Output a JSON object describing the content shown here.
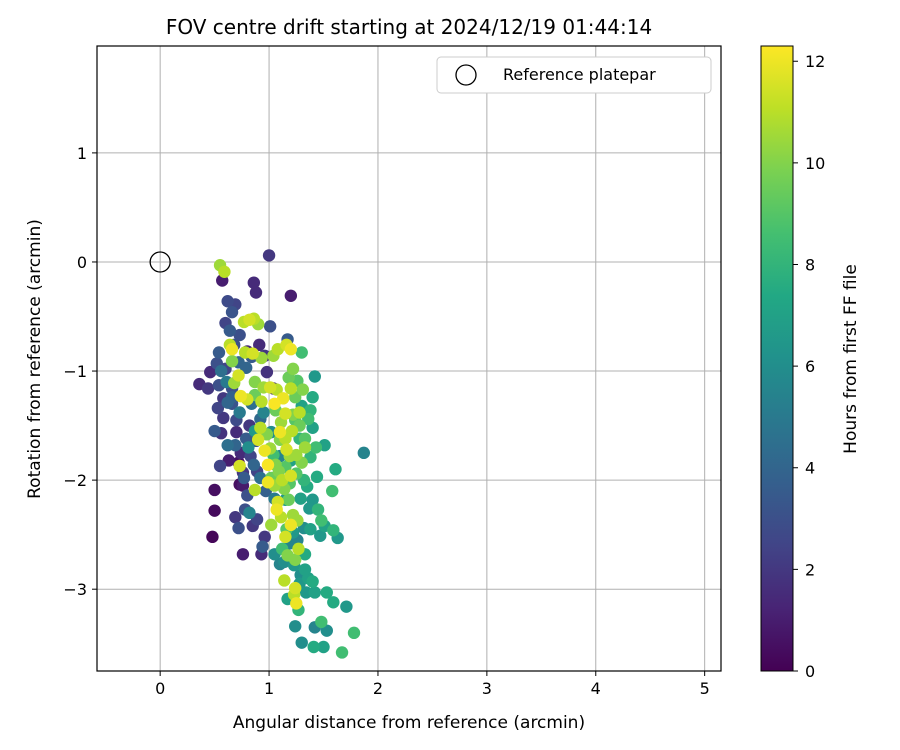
{
  "chart_data": {
    "type": "scatter",
    "title": "FOV centre drift starting at 2024/12/19 01:44:14",
    "xlabel": "Angular distance from reference (arcmin)",
    "ylabel": "Rotation from reference (arcmin)",
    "xlim": [
      -0.58,
      5.15
    ],
    "ylim": [
      -3.75,
      1.98
    ],
    "xticks": [
      0,
      1,
      2,
      3,
      4,
      5
    ],
    "xtick_labels": [
      "0",
      "1",
      "2",
      "3",
      "4",
      "5"
    ],
    "yticks": [
      1,
      0,
      -1,
      -2,
      -3
    ],
    "ytick_labels": [
      "1",
      "0",
      "−1",
      "−2",
      "−3"
    ],
    "grid": true,
    "legend": {
      "placement": "top-right",
      "entries": [
        {
          "label": "Reference platepar",
          "marker": "open-circle"
        }
      ]
    },
    "reference_point": {
      "x": 0,
      "y": 0,
      "label": "Reference platepar"
    },
    "colorbar": {
      "label": "Hours from first FF file",
      "colormap": "viridis",
      "range": [
        0,
        12.3
      ],
      "ticks": [
        0,
        2,
        4,
        6,
        8,
        10,
        12
      ],
      "tick_labels": [
        "0",
        "2",
        "4",
        "6",
        "8",
        "10",
        "12"
      ]
    },
    "points": [
      [
        0.48,
        -2.52,
        0.2
      ],
      [
        0.5,
        -2.28,
        0.3
      ],
      [
        0.5,
        -2.09,
        0.5
      ],
      [
        0.55,
        -1.87,
        2.5
      ],
      [
        0.63,
        -1.82,
        1.0
      ],
      [
        0.72,
        -1.84,
        0.6
      ],
      [
        0.73,
        -2.04,
        0.5
      ],
      [
        0.76,
        -2.05,
        0.9
      ],
      [
        0.69,
        -2.34,
        2.0
      ],
      [
        0.72,
        -2.44,
        3.0
      ],
      [
        0.76,
        -2.68,
        1.0
      ],
      [
        0.85,
        -2.42,
        2.0
      ],
      [
        0.78,
        -2.27,
        3.0
      ],
      [
        0.89,
        -2.36,
        2.5
      ],
      [
        0.93,
        -2.68,
        1.5
      ],
      [
        0.96,
        -2.52,
        2.0
      ],
      [
        0.94,
        -2.61,
        3.5
      ],
      [
        0.36,
        -1.12,
        1.5
      ],
      [
        0.44,
        -1.16,
        2.0
      ],
      [
        0.46,
        -1.01,
        1.5
      ],
      [
        0.52,
        -0.93,
        3.0
      ],
      [
        0.54,
        -0.83,
        3.5
      ],
      [
        0.53,
        -1.34,
        2.5
      ],
      [
        0.5,
        -1.55,
        3.5
      ],
      [
        0.56,
        -1.57,
        1.8
      ],
      [
        0.58,
        -1.43,
        2.0
      ],
      [
        0.62,
        -1.29,
        4.0
      ],
      [
        0.66,
        -1.16,
        3.0
      ],
      [
        0.7,
        -1.56,
        1.5
      ],
      [
        0.74,
        -1.75,
        1.5
      ],
      [
        0.76,
        -1.93,
        2.0
      ],
      [
        0.8,
        -2.14,
        3.0
      ],
      [
        0.77,
        -1.98,
        3.5
      ],
      [
        0.83,
        -1.78,
        2.5
      ],
      [
        0.88,
        -1.64,
        3.0
      ],
      [
        0.82,
        -1.5,
        2.0
      ],
      [
        0.6,
        -0.56,
        2.5
      ],
      [
        0.57,
        -0.17,
        1.0
      ],
      [
        0.62,
        -0.36,
        2.8
      ],
      [
        0.66,
        -0.46,
        3.2
      ],
      [
        0.69,
        -0.39,
        2.5
      ],
      [
        0.86,
        -0.19,
        1.5
      ],
      [
        0.88,
        -0.28,
        1.5
      ],
      [
        1.0,
        0.06,
        2.0
      ],
      [
        1.01,
        -0.59,
        3.0
      ],
      [
        1.2,
        -0.31,
        1.0
      ],
      [
        1.17,
        -0.71,
        3.5
      ],
      [
        0.91,
        -0.76,
        1.5
      ],
      [
        0.96,
        -0.86,
        2.0
      ],
      [
        0.98,
        -1.01,
        1.8
      ],
      [
        1.04,
        -1.16,
        1.5
      ],
      [
        0.64,
        -0.63,
        3.5
      ],
      [
        0.68,
        -0.76,
        3.0
      ],
      [
        0.72,
        -0.92,
        4.0
      ],
      [
        0.8,
        -0.82,
        1.5
      ],
      [
        0.56,
        -1.0,
        4.5
      ],
      [
        0.61,
        -1.1,
        5.0
      ],
      [
        0.66,
        -1.3,
        3.2
      ],
      [
        0.7,
        -1.45,
        2.8
      ],
      [
        0.62,
        -1.68,
        4.5
      ],
      [
        0.66,
        -1.24,
        3.8
      ],
      [
        0.73,
        -1.38,
        5.0
      ],
      [
        0.84,
        -1.3,
        4.5
      ],
      [
        0.92,
        -1.44,
        4.2
      ],
      [
        0.86,
        -1.86,
        4.0
      ],
      [
        0.92,
        -1.98,
        4.5
      ],
      [
        0.97,
        -2.1,
        3.8
      ],
      [
        0.82,
        -2.3,
        5.5
      ],
      [
        1.14,
        -2.75,
        6.0
      ],
      [
        1.19,
        -2.58,
        5.5
      ],
      [
        1.22,
        -2.48,
        6.5
      ],
      [
        1.26,
        -2.55,
        5.5
      ],
      [
        1.32,
        -2.44,
        6.0
      ],
      [
        1.05,
        -2.68,
        6.0
      ],
      [
        1.1,
        -2.77,
        5.5
      ],
      [
        1.23,
        -2.78,
        6.5
      ],
      [
        1.29,
        -2.87,
        6.0
      ],
      [
        1.36,
        -2.9,
        7.0
      ],
      [
        1.4,
        -2.93,
        7.5
      ],
      [
        1.34,
        -3.03,
        6.5
      ],
      [
        1.42,
        -3.03,
        7.0
      ],
      [
        1.53,
        -3.03,
        7.5
      ],
      [
        1.59,
        -3.12,
        7.5
      ],
      [
        1.71,
        -3.16,
        6.5
      ],
      [
        1.17,
        -3.09,
        7.0
      ],
      [
        1.27,
        -3.19,
        8.0
      ],
      [
        1.24,
        -3.34,
        6.0
      ],
      [
        1.42,
        -3.35,
        5.5
      ],
      [
        1.48,
        -3.3,
        8.5
      ],
      [
        1.53,
        -3.38,
        6.0
      ],
      [
        1.3,
        -3.49,
        6.0
      ],
      [
        1.41,
        -3.53,
        7.5
      ],
      [
        1.5,
        -3.53,
        7.0
      ],
      [
        1.67,
        -3.58,
        8.5
      ],
      [
        1.78,
        -3.4,
        8.5
      ],
      [
        1.47,
        -2.51,
        6.5
      ],
      [
        1.51,
        -2.42,
        7.0
      ],
      [
        1.59,
        -2.46,
        8.0
      ],
      [
        1.63,
        -2.53,
        6.5
      ],
      [
        1.45,
        -2.27,
        8.0
      ],
      [
        1.48,
        -2.37,
        8.5
      ],
      [
        1.4,
        -2.18,
        6.5
      ],
      [
        1.58,
        -2.1,
        8.5
      ],
      [
        1.61,
        -1.9,
        7.5
      ],
      [
        1.51,
        -1.68,
        7.0
      ],
      [
        1.43,
        -1.7,
        8.5
      ],
      [
        1.38,
        -1.79,
        8.0
      ],
      [
        1.44,
        -1.97,
        7.5
      ],
      [
        1.87,
        -1.75,
        5.5
      ],
      [
        1.4,
        -1.52,
        7.0
      ],
      [
        1.38,
        -1.36,
        8.0
      ],
      [
        1.4,
        -1.24,
        7.5
      ],
      [
        1.3,
        -1.32,
        7.0
      ],
      [
        1.42,
        -1.05,
        6.5
      ],
      [
        1.3,
        -0.83,
        8.5
      ],
      [
        1.24,
        -1.24,
        9.5
      ],
      [
        1.18,
        -1.06,
        9.5
      ],
      [
        1.24,
        -1.45,
        9.0
      ],
      [
        1.28,
        -1.62,
        8.0
      ],
      [
        1.2,
        -1.82,
        7.0
      ],
      [
        1.25,
        -1.94,
        9.0
      ],
      [
        1.32,
        -2.0,
        8.0
      ],
      [
        1.18,
        -2.18,
        9.5
      ],
      [
        1.14,
        -2.08,
        10.0
      ],
      [
        1.22,
        -2.32,
        10.5
      ],
      [
        1.16,
        -2.45,
        9.0
      ],
      [
        1.12,
        -2.63,
        8.5
      ],
      [
        1.17,
        -2.69,
        10.0
      ],
      [
        1.27,
        -2.63,
        11.0
      ],
      [
        1.24,
        -2.73,
        10.0
      ],
      [
        1.14,
        -2.92,
        11.0
      ],
      [
        1.24,
        -2.99,
        11.5
      ],
      [
        1.23,
        -3.05,
        11.0
      ],
      [
        1.25,
        -3.13,
        12.0
      ],
      [
        1.02,
        -2.41,
        10.5
      ],
      [
        1.07,
        -2.27,
        12.0
      ],
      [
        1.08,
        -2.2,
        11.5
      ],
      [
        1.05,
        -2.05,
        10.5
      ],
      [
        1.12,
        -2.0,
        11.0
      ],
      [
        1.06,
        -1.86,
        10.0
      ],
      [
        1.16,
        -1.72,
        11.5
      ],
      [
        1.1,
        -1.63,
        10.0
      ],
      [
        1.21,
        -1.55,
        11.0
      ],
      [
        1.11,
        -1.47,
        10.5
      ],
      [
        1.06,
        -1.36,
        9.5
      ],
      [
        1.15,
        -1.39,
        11.5
      ],
      [
        1.22,
        -1.4,
        10.0
      ],
      [
        1.07,
        -1.17,
        11.0
      ],
      [
        1.01,
        -1.15,
        11.5
      ],
      [
        1.13,
        -1.25,
        12.0
      ],
      [
        1.05,
        -1.3,
        12.2
      ],
      [
        0.93,
        -1.28,
        11.0
      ],
      [
        0.95,
        -1.15,
        10.5
      ],
      [
        0.87,
        -1.1,
        10.0
      ],
      [
        0.87,
        -1.22,
        9.5
      ],
      [
        0.8,
        -1.26,
        11.5
      ],
      [
        0.74,
        -1.23,
        12.0
      ],
      [
        0.72,
        -1.04,
        11.5
      ],
      [
        0.68,
        -1.11,
        10.5
      ],
      [
        0.66,
        -0.91,
        10.0
      ],
      [
        0.64,
        -0.76,
        11.0
      ],
      [
        0.66,
        -0.8,
        12.0
      ],
      [
        0.78,
        -0.83,
        11.0
      ],
      [
        0.85,
        -0.84,
        11.5
      ],
      [
        0.93,
        -0.88,
        10.5
      ],
      [
        0.77,
        -0.55,
        11.0
      ],
      [
        0.82,
        -0.53,
        11.5
      ],
      [
        0.86,
        -0.52,
        11.0
      ],
      [
        0.9,
        -0.57,
        10.5
      ],
      [
        1.04,
        -0.86,
        10.5
      ],
      [
        1.08,
        -0.8,
        11.0
      ],
      [
        1.16,
        -0.76,
        11.5
      ],
      [
        1.2,
        -0.8,
        12.0
      ],
      [
        0.55,
        -0.03,
        10.5
      ],
      [
        0.59,
        -0.09,
        11.0
      ],
      [
        0.92,
        -1.52,
        11.0
      ],
      [
        0.98,
        -1.58,
        10.0
      ],
      [
        0.9,
        -1.63,
        11.5
      ],
      [
        0.96,
        -1.73,
        12.0
      ],
      [
        1.01,
        -1.71,
        10.5
      ],
      [
        0.87,
        -2.09,
        11.0
      ],
      [
        0.73,
        -1.87,
        11.5
      ],
      [
        0.99,
        -2.02,
        12.0
      ],
      [
        1.02,
        -1.98,
        9.5
      ],
      [
        1.09,
        -1.92,
        10.0
      ],
      [
        1.19,
        -2.03,
        9.0
      ],
      [
        1.2,
        -1.96,
        11.5
      ],
      [
        1.25,
        -1.77,
        10.5
      ],
      [
        1.28,
        -1.5,
        9.5
      ],
      [
        1.3,
        -1.84,
        10.0
      ],
      [
        1.33,
        -1.7,
        10.5
      ],
      [
        1.33,
        -1.62,
        9.0
      ],
      [
        1.36,
        -1.44,
        8.5
      ],
      [
        1.28,
        -1.38,
        11.0
      ],
      [
        1.26,
        -1.09,
        9.0
      ],
      [
        1.22,
        -0.98,
        10.0
      ],
      [
        1.2,
        -1.16,
        11.0
      ],
      [
        1.31,
        -1.17,
        10.0
      ],
      [
        1.11,
        -2.34,
        11.0
      ],
      [
        1.2,
        -2.41,
        12.0
      ],
      [
        1.15,
        -2.52,
        11.5
      ],
      [
        1.26,
        -2.37,
        10.5
      ],
      [
        1.04,
        -1.77,
        8.5
      ],
      [
        1.15,
        -1.88,
        9.0
      ],
      [
        1.19,
        -1.78,
        10.5
      ],
      [
        1.1,
        -1.56,
        12.0
      ],
      [
        1.15,
        -1.62,
        11.0
      ],
      [
        0.99,
        -1.86,
        12.2
      ],
      [
        0.84,
        -0.87,
        3.5
      ],
      [
        0.79,
        -0.97,
        4.0
      ],
      [
        0.73,
        -0.67,
        3.0
      ],
      [
        0.6,
        -0.98,
        2.5
      ],
      [
        0.54,
        -1.13,
        3.0
      ],
      [
        0.58,
        -1.25,
        2.0
      ],
      [
        0.69,
        -1.68,
        4.0
      ],
      [
        0.79,
        -1.62,
        3.5
      ],
      [
        0.89,
        -1.92,
        2.5
      ],
      [
        0.81,
        -1.7,
        6.0
      ],
      [
        0.87,
        -1.55,
        6.5
      ],
      [
        0.95,
        -1.38,
        5.5
      ],
      [
        1.02,
        -1.56,
        6.0
      ],
      [
        1.1,
        -1.78,
        5.5
      ],
      [
        1.12,
        -2.02,
        6.0
      ],
      [
        1.05,
        -2.17,
        5.0
      ],
      [
        1.15,
        -2.18,
        6.5
      ],
      [
        1.29,
        -2.17,
        7.0
      ],
      [
        1.35,
        -2.06,
        7.5
      ],
      [
        1.37,
        -2.26,
        6.5
      ],
      [
        1.38,
        -2.45,
        7.0
      ],
      [
        1.33,
        -2.68,
        7.5
      ],
      [
        1.33,
        -2.82,
        7.0
      ],
      [
        1.28,
        -2.95,
        6.5
      ]
    ]
  }
}
